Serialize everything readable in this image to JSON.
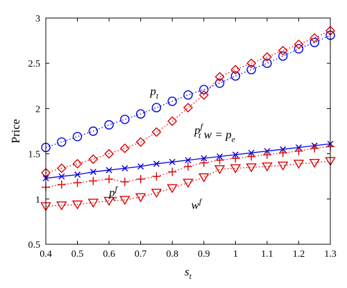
{
  "chart_data": {
    "type": "line",
    "xlabel": "s_t",
    "ylabel": "Price",
    "xlim": [
      0.4,
      1.3
    ],
    "ylim": [
      0.5,
      3
    ],
    "x_ticks": [
      "0.4",
      "0.5",
      "0.6",
      "0.7",
      "0.8",
      "0.9",
      "1",
      "1.1",
      "1.2",
      "1.3"
    ],
    "y_ticks": [
      "0.5",
      "1",
      "1.5",
      "2",
      "2.5",
      "3"
    ],
    "grid": false,
    "x": [
      0.4,
      0.45,
      0.5,
      0.55,
      0.6,
      0.65,
      0.7,
      0.75,
      0.8,
      0.85,
      0.9,
      0.95,
      1.0,
      1.05,
      1.1,
      1.15,
      1.2,
      1.25,
      1.3
    ],
    "series": [
      {
        "id": "pt",
        "color": "#0000dd",
        "marker": "circle",
        "line": "dotted",
        "values": [
          1.57,
          1.63,
          1.69,
          1.75,
          1.82,
          1.88,
          1.94,
          2.01,
          2.08,
          2.15,
          2.21,
          2.28,
          2.36,
          2.43,
          2.5,
          2.58,
          2.66,
          2.73,
          2.81
        ]
      },
      {
        "id": "ptf",
        "color": "#dd0000",
        "marker": "diamond",
        "line": "dotted",
        "values": [
          1.29,
          1.34,
          1.39,
          1.44,
          1.5,
          1.56,
          1.63,
          1.74,
          1.86,
          2.01,
          2.15,
          2.35,
          2.43,
          2.5,
          2.57,
          2.64,
          2.71,
          2.78,
          2.86
        ]
      },
      {
        "id": "w_pe",
        "color": "#0000dd",
        "marker": "x",
        "line": "solid",
        "values": [
          1.23,
          1.25,
          1.27,
          1.3,
          1.32,
          1.34,
          1.36,
          1.39,
          1.41,
          1.43,
          1.45,
          1.47,
          1.49,
          1.51,
          1.53,
          1.55,
          1.57,
          1.59,
          1.61
        ]
      },
      {
        "id": "pef",
        "color": "#dd0000",
        "marker": "plus",
        "line": "dotted",
        "values": [
          1.13,
          1.16,
          1.18,
          1.2,
          1.22,
          1.19,
          1.22,
          1.25,
          1.3,
          1.36,
          1.4,
          1.43,
          1.45,
          1.47,
          1.49,
          1.51,
          1.53,
          1.56,
          1.58
        ]
      },
      {
        "id": "wf",
        "color": "#dd0000",
        "marker": "triangle-down",
        "line": "dotted",
        "values": [
          0.92,
          0.93,
          0.94,
          0.96,
          0.98,
          0.99,
          1.02,
          1.07,
          1.12,
          1.18,
          1.24,
          1.33,
          1.34,
          1.35,
          1.36,
          1.37,
          1.39,
          1.4,
          1.42
        ]
      }
    ],
    "annotations": [
      {
        "id": "pt",
        "base": "p",
        "sub": "t",
        "sup": "",
        "x": 0.73,
        "y": 2.15
      },
      {
        "id": "ptf",
        "base": "p",
        "sub": "t",
        "sup": "f",
        "x": 0.87,
        "y": 1.72
      },
      {
        "id": "w_pe",
        "base": "w = p",
        "sub": "e",
        "sup": "",
        "x": 0.9,
        "y": 1.67
      },
      {
        "id": "pef",
        "base": "p",
        "sub": "e",
        "sup": "f",
        "x": 0.6,
        "y": 1.03
      },
      {
        "id": "wf",
        "base": "w",
        "sub": "",
        "sup": "f",
        "x": 0.86,
        "y": 0.89
      }
    ]
  }
}
